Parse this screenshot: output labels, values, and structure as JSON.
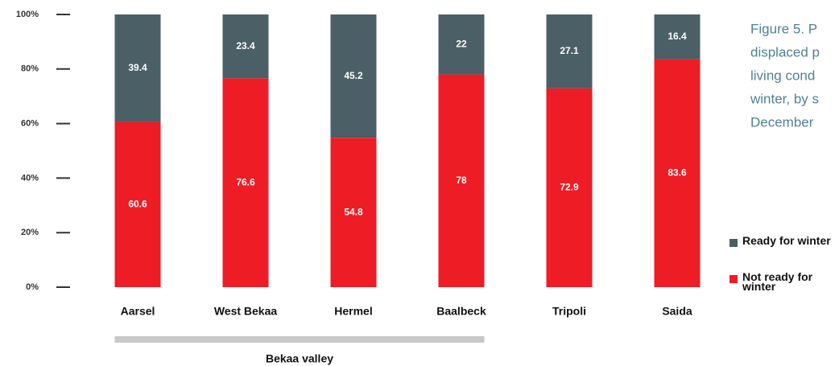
{
  "chart_data": {
    "type": "stacked_bar",
    "categories": [
      "Aarsel",
      "West Bekaa",
      "Hermel",
      "Baalbeck",
      "Tripoli",
      "Saida"
    ],
    "series": [
      {
        "name": "Not ready for winter",
        "color": "#ee1c25",
        "values": [
          60.6,
          76.6,
          54.8,
          78,
          72.9,
          83.6
        ]
      },
      {
        "name": "Ready for winter",
        "color": "#4b5f66",
        "values": [
          39.4,
          23.4,
          45.2,
          22,
          27.1,
          16.4
        ]
      }
    ],
    "ylim": [
      0,
      100
    ],
    "yticks": [
      {
        "value": 0,
        "label": "0%"
      },
      {
        "value": 20,
        "label": "20%"
      },
      {
        "value": 40,
        "label": "40%"
      },
      {
        "value": 60,
        "label": "60%"
      },
      {
        "value": 80,
        "label": "80%"
      },
      {
        "value": 100,
        "label": "100%"
      }
    ],
    "groups": [
      {
        "label": "Bekaa valley",
        "members": [
          "Aarsel",
          "West Bekaa",
          "Hermel",
          "Baalbeck"
        ]
      }
    ],
    "caption": [
      "Figure 5. P",
      "displaced p",
      "living cond",
      "winter, by s",
      "December"
    ]
  }
}
